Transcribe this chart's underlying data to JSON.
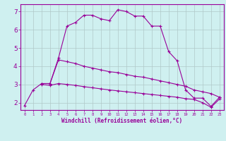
{
  "xlabel": "Windchill (Refroidissement éolien,°C)",
  "background_color": "#cff0f0",
  "line_color": "#990099",
  "grid_color": "#b0c8c8",
  "xlim": [
    -0.5,
    23.5
  ],
  "ylim": [
    1.6,
    7.4
  ],
  "yticks": [
    2,
    3,
    4,
    5,
    6,
    7
  ],
  "xticks": [
    0,
    1,
    2,
    3,
    4,
    5,
    6,
    7,
    8,
    9,
    10,
    11,
    12,
    13,
    14,
    15,
    16,
    17,
    18,
    19,
    20,
    21,
    22,
    23
  ],
  "line1_x": [
    0,
    1,
    2,
    3,
    4,
    5,
    6,
    7,
    8,
    9,
    10,
    11,
    12,
    13,
    14,
    15,
    16,
    17,
    18,
    19,
    20,
    21,
    22,
    23
  ],
  "line1_y": [
    1.85,
    2.7,
    3.05,
    3.05,
    4.45,
    6.2,
    6.4,
    6.8,
    6.8,
    6.6,
    6.5,
    7.1,
    7.0,
    6.75,
    6.75,
    6.2,
    6.2,
    4.8,
    4.3,
    2.7,
    2.25,
    2.25,
    1.8,
    2.3
  ],
  "line2_x": [
    2,
    3,
    4,
    5,
    6,
    7,
    8,
    9,
    10,
    11,
    12,
    13,
    14,
    15,
    16,
    17,
    18,
    19,
    20,
    21,
    22,
    23
  ],
  "line2_y": [
    3.05,
    3.05,
    4.35,
    4.25,
    4.15,
    4.0,
    3.9,
    3.8,
    3.7,
    3.65,
    3.55,
    3.45,
    3.4,
    3.3,
    3.2,
    3.1,
    3.0,
    2.9,
    2.7,
    2.6,
    2.5,
    2.3
  ],
  "line3_x": [
    2,
    3,
    4,
    5,
    6,
    7,
    8,
    9,
    10,
    11,
    12,
    13,
    14,
    15,
    16,
    17,
    18,
    19,
    20,
    21,
    22,
    23
  ],
  "line3_y": [
    3.0,
    2.95,
    3.05,
    3.0,
    2.95,
    2.88,
    2.82,
    2.76,
    2.7,
    2.65,
    2.6,
    2.55,
    2.5,
    2.45,
    2.4,
    2.35,
    2.3,
    2.22,
    2.18,
    2.0,
    1.75,
    2.2
  ]
}
